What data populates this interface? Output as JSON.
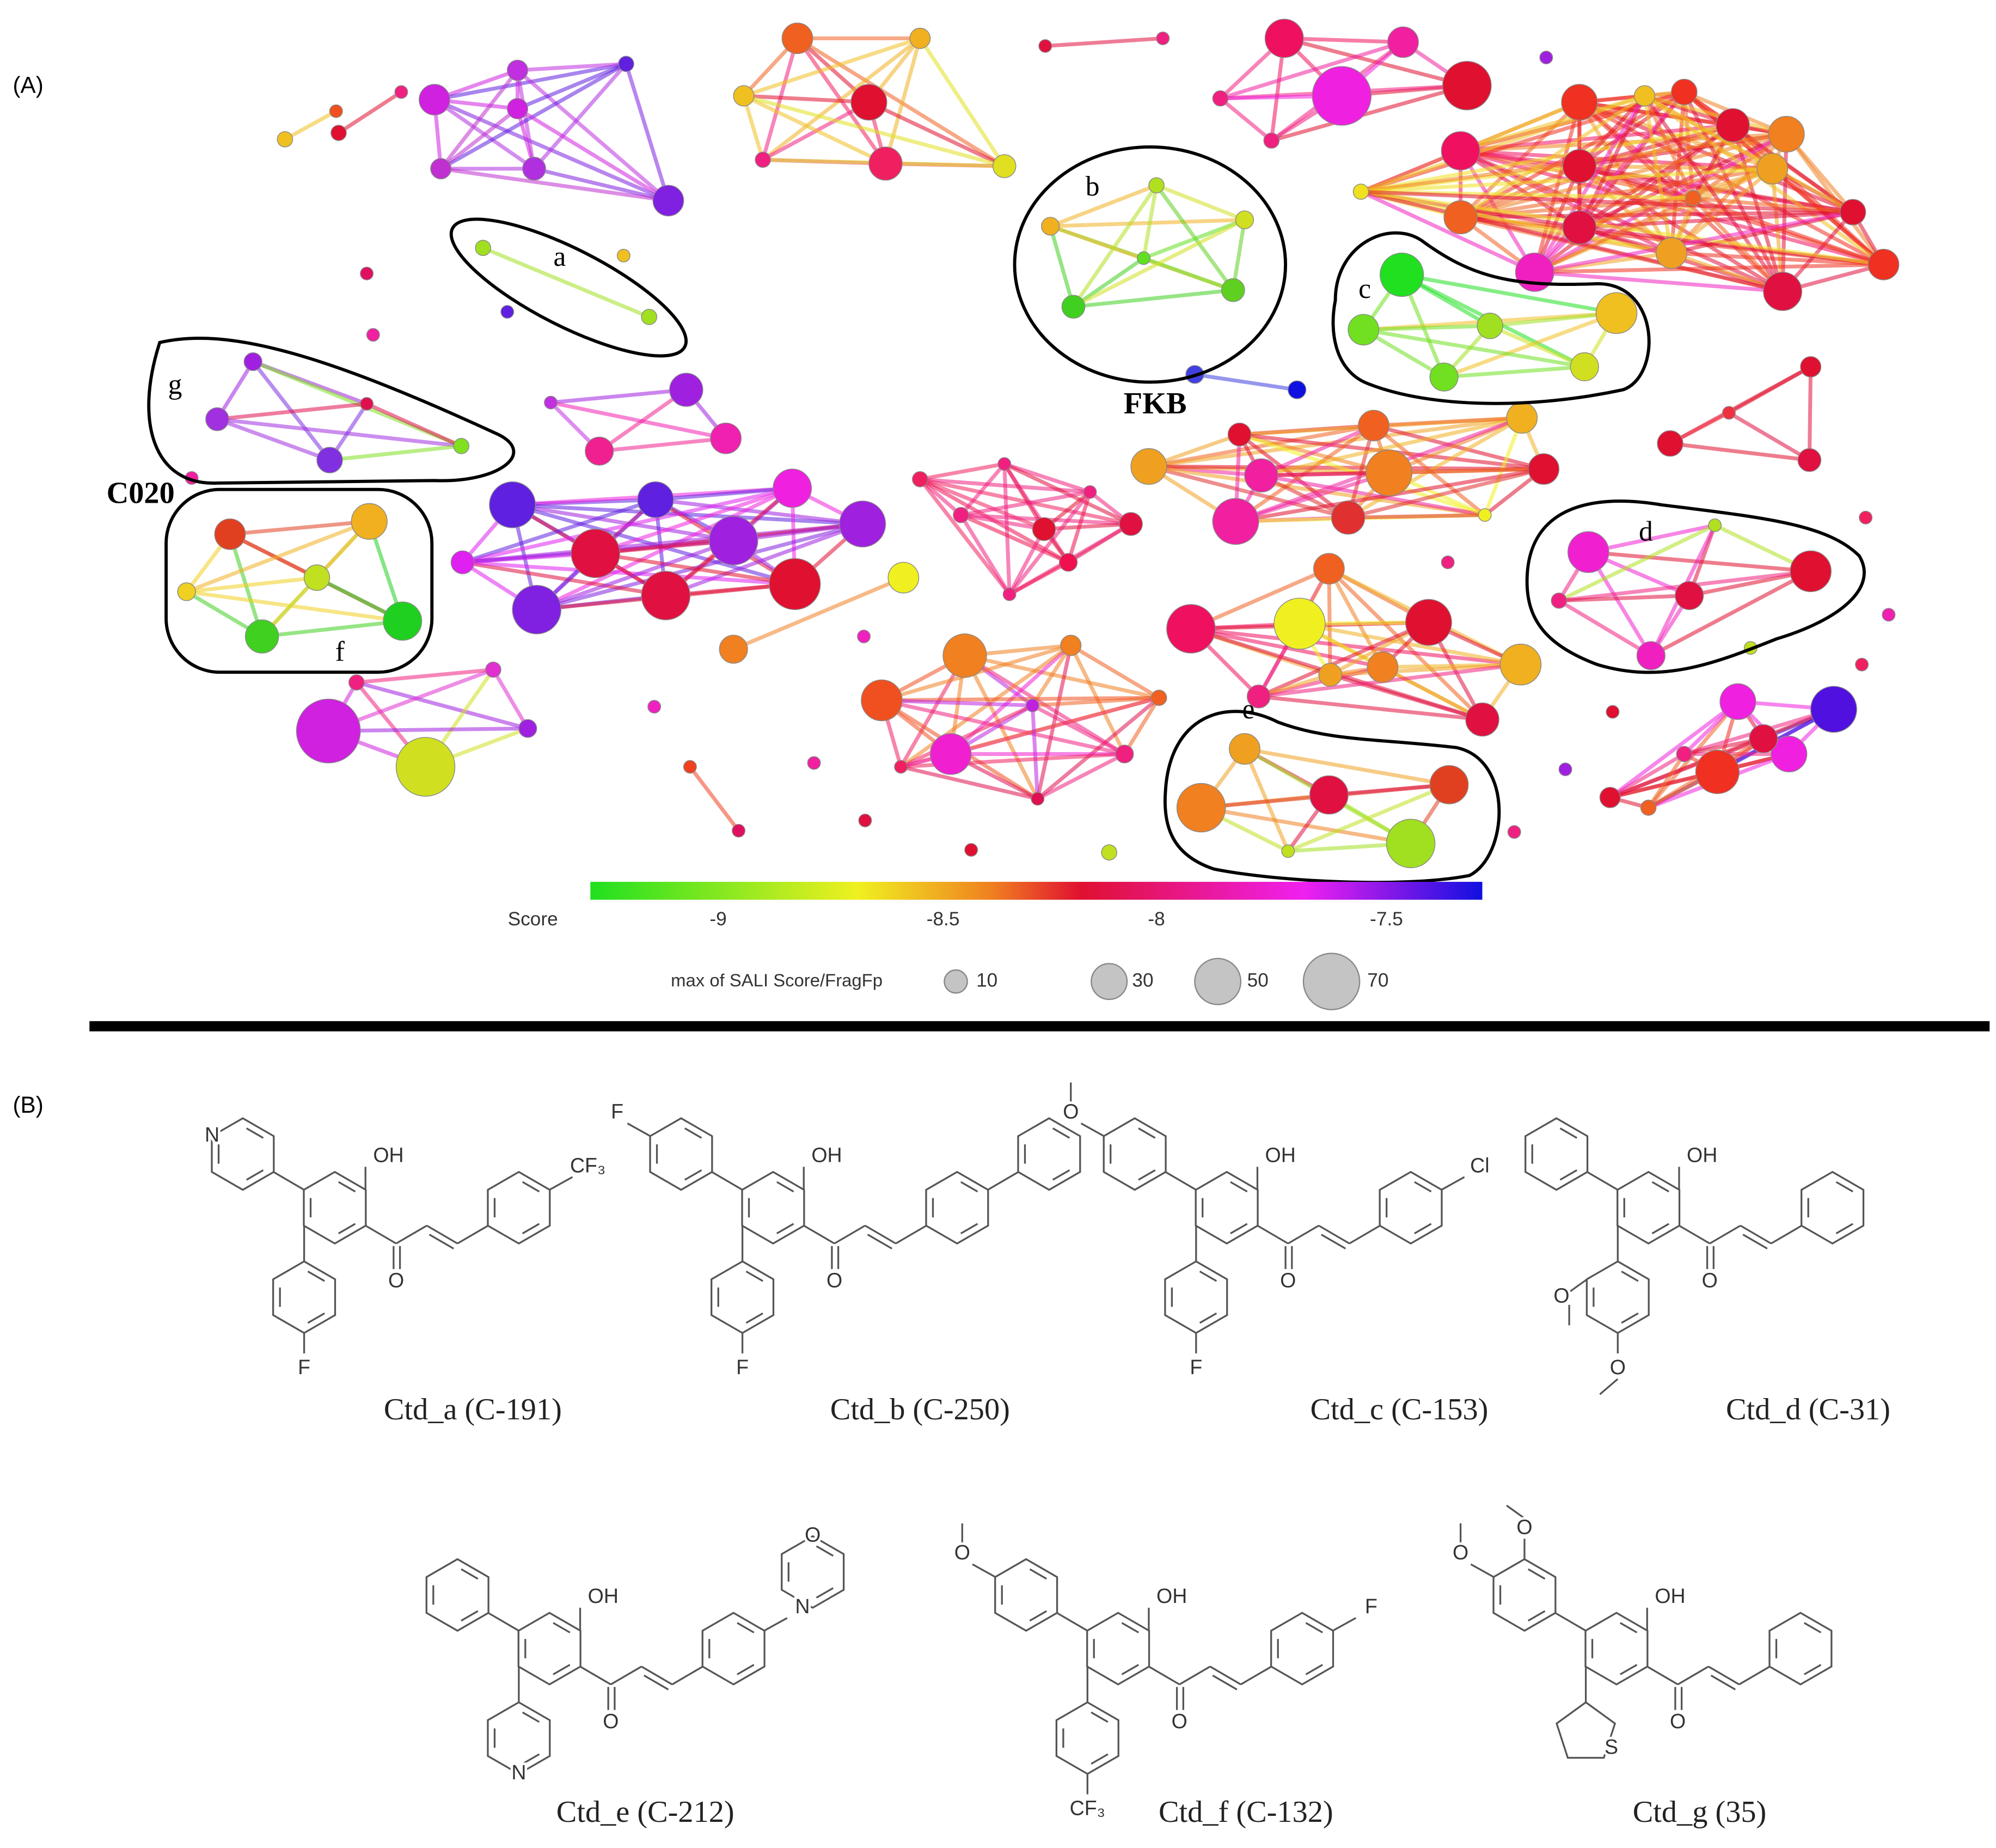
{
  "panel_a": {
    "label": "(A)",
    "cluster_labels": [
      "a",
      "b",
      "c",
      "d",
      "e",
      "f",
      "g"
    ],
    "annotations": [
      "FKB",
      "C020"
    ],
    "colorbar": {
      "title": "Score",
      "ticks": [
        "-9",
        "-8.5",
        "-8",
        "-7.5"
      ]
    },
    "size_legend": {
      "title": "max of SALI Score/FragFp",
      "sizes": [
        "10",
        "30",
        "50",
        "70"
      ]
    }
  },
  "panel_b": {
    "label": "(B)",
    "compounds": [
      {
        "caption": "Ctd_a (C-191)",
        "atoms": [
          "N",
          "OH",
          "CF₃",
          "O",
          "F"
        ]
      },
      {
        "caption": "Ctd_b (C-250)",
        "atoms": [
          "F",
          "OH",
          "O",
          "F"
        ]
      },
      {
        "caption": "Ctd_c (C-153)",
        "atoms": [
          "O",
          "OH",
          "Cl",
          "O",
          "F"
        ]
      },
      {
        "caption": "Ctd_d (C-31)",
        "atoms": [
          "OH",
          "O",
          "O",
          "O"
        ]
      },
      {
        "caption": "Ctd_e (C-212)",
        "atoms": [
          "OH",
          "N",
          "O",
          "O",
          "N"
        ]
      },
      {
        "caption": "Ctd_f (C-132)",
        "atoms": [
          "O",
          "OH",
          "F",
          "O",
          "CF₃"
        ]
      },
      {
        "caption": "Ctd_g (35)",
        "atoms": [
          "O",
          "O",
          "OH",
          "O",
          "S"
        ]
      }
    ]
  }
}
